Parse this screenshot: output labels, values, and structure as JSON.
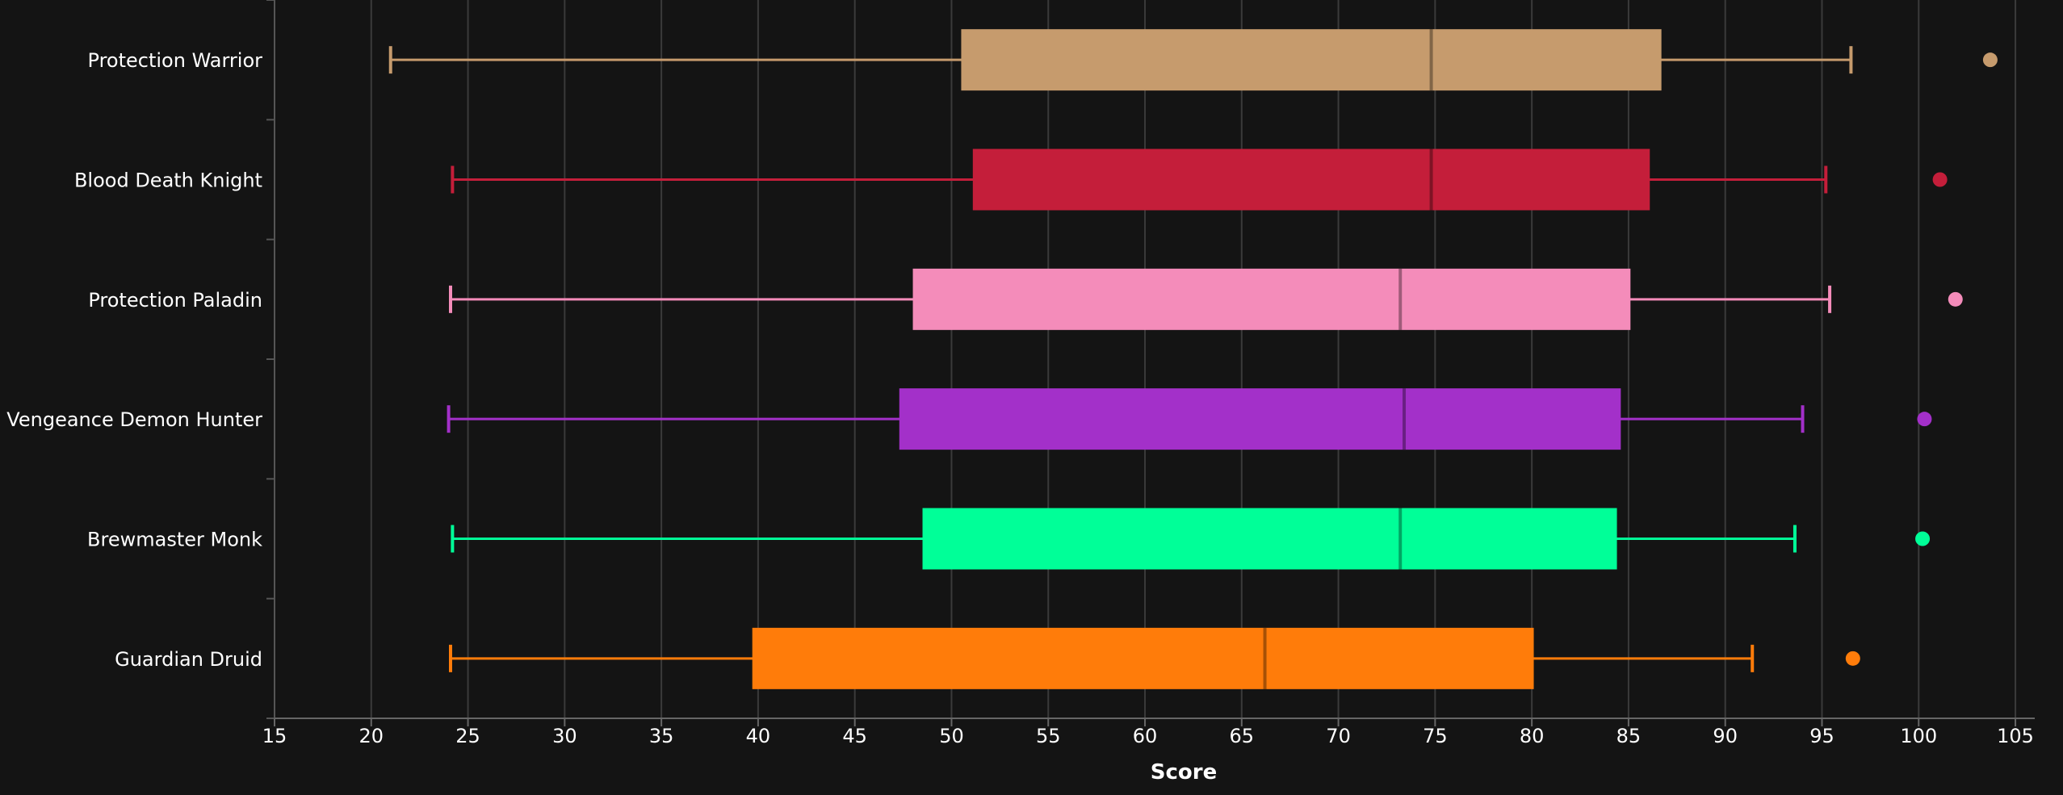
{
  "chart_data": {
    "type": "boxplot",
    "title": "",
    "xlabel": "Score",
    "ylabel": "",
    "xlim": [
      15,
      106
    ],
    "grid": true,
    "orientation": "horizontal",
    "x_ticks": [
      15,
      20,
      25,
      30,
      35,
      40,
      45,
      50,
      55,
      60,
      65,
      70,
      75,
      80,
      85,
      90,
      95,
      100,
      105
    ],
    "series": [
      {
        "name": "Protection Warrior",
        "color": "#C69B6D",
        "min": 21.0,
        "q1": 50.5,
        "median": 74.8,
        "q3": 86.7,
        "max": 96.5,
        "outliers": [
          103.7
        ]
      },
      {
        "name": "Blood Death Knight",
        "color": "#C41E3A",
        "min": 24.2,
        "q1": 51.1,
        "median": 74.8,
        "q3": 86.1,
        "max": 95.2,
        "outliers": [
          101.1
        ]
      },
      {
        "name": "Protection Paladin",
        "color": "#F48CBA",
        "min": 24.1,
        "q1": 48.0,
        "median": 73.2,
        "q3": 85.1,
        "max": 95.4,
        "outliers": [
          101.9
        ]
      },
      {
        "name": "Vengeance Demon Hunter",
        "color": "#A330C9",
        "min": 24.0,
        "q1": 47.3,
        "median": 73.4,
        "q3": 84.6,
        "max": 94.0,
        "outliers": [
          100.3
        ]
      },
      {
        "name": "Brewmaster Monk",
        "color": "#00FF98",
        "min": 24.2,
        "q1": 48.5,
        "median": 73.2,
        "q3": 84.4,
        "max": 93.6,
        "outliers": [
          100.2
        ]
      },
      {
        "name": "Guardian Druid",
        "color": "#FF7C0A",
        "min": 24.1,
        "q1": 39.7,
        "median": 66.2,
        "q3": 80.1,
        "max": 91.4,
        "outliers": [
          96.6
        ]
      }
    ]
  }
}
